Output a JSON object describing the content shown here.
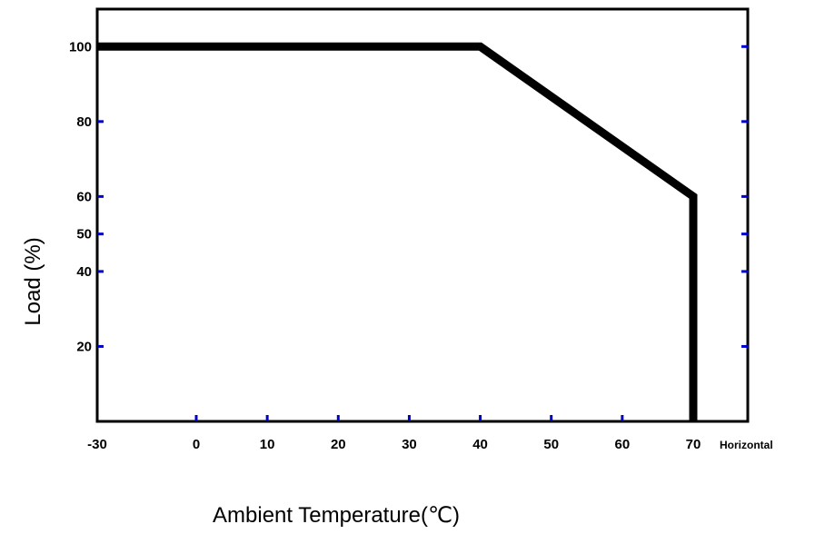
{
  "chart_data": {
    "type": "line",
    "title": "",
    "xlabel": "Ambient Temperature(℃)",
    "ylabel": "Load (%)",
    "x_note": "Horizontal",
    "x_ticks": [
      -30,
      0,
      10,
      20,
      30,
      40,
      50,
      60,
      70
    ],
    "y_ticks": [
      20,
      40,
      50,
      60,
      80,
      100
    ],
    "xlim": [
      -30,
      70
    ],
    "ylim": [
      0,
      110
    ],
    "grid": false,
    "legend": "none",
    "series": [
      {
        "x": [
          -30,
          40,
          70,
          70
        ],
        "y": [
          100,
          100,
          60,
          0
        ]
      }
    ],
    "colors": {
      "line": "#000000",
      "axis": "#000000",
      "tick": "#0000cc"
    }
  }
}
